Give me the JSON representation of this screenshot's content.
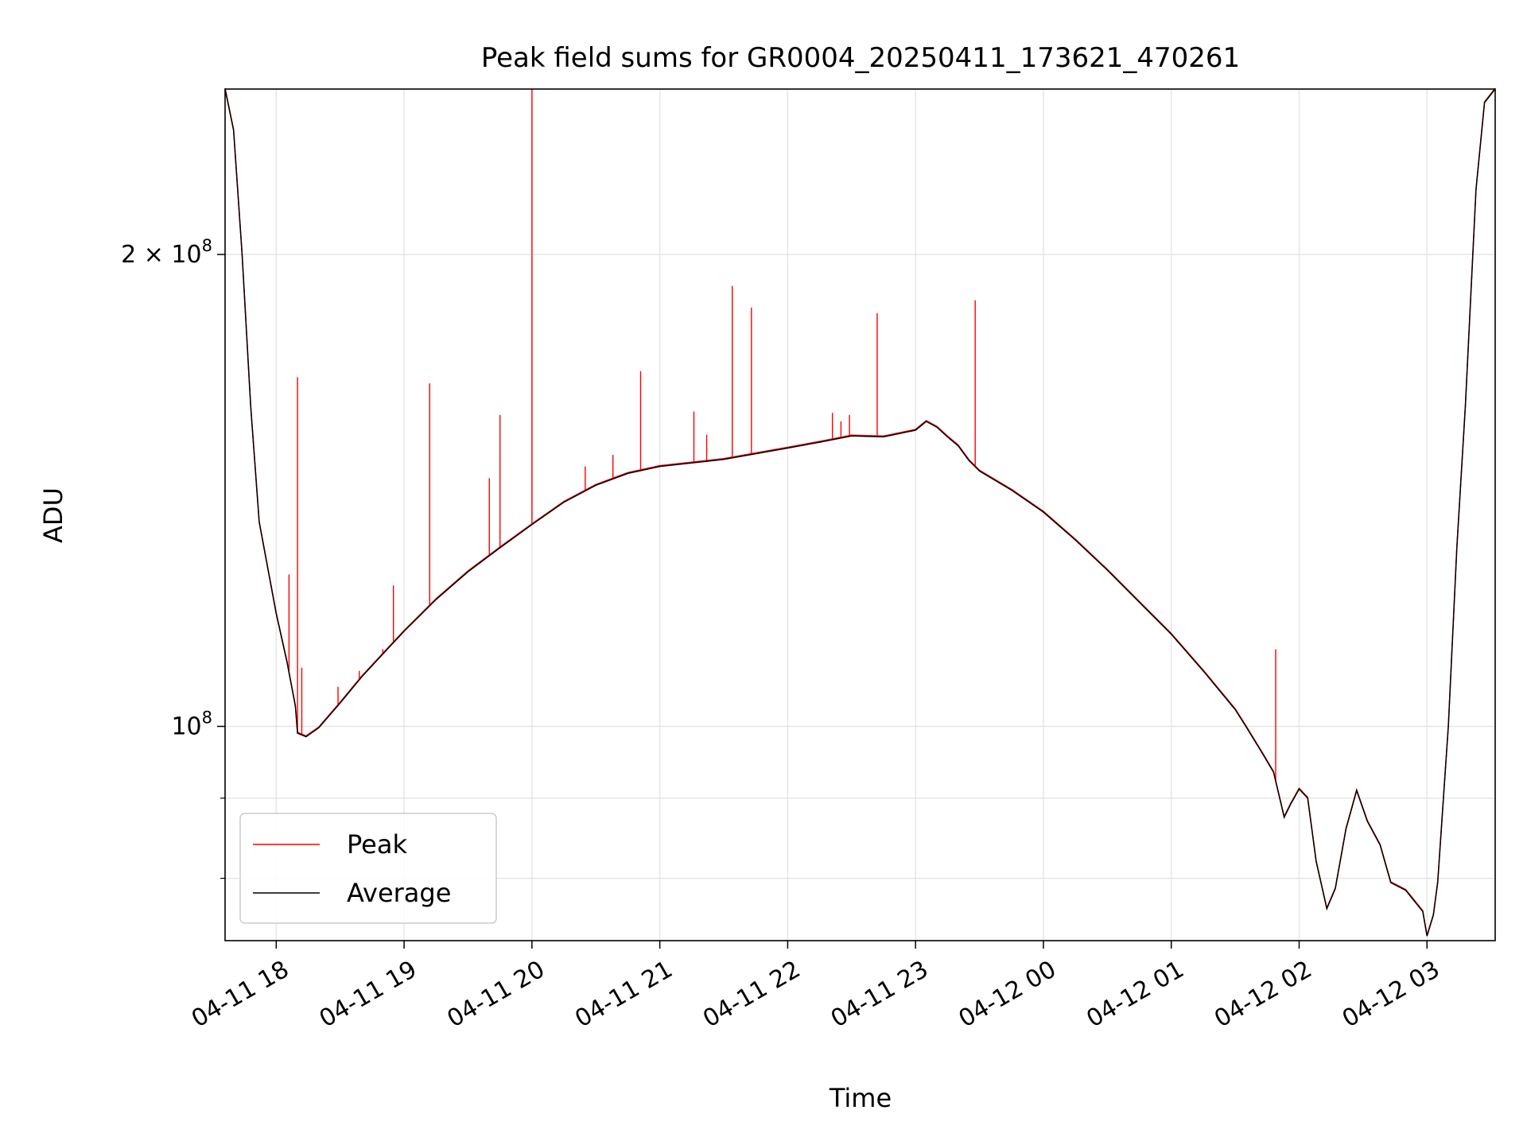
{
  "chart_data": {
    "type": "line",
    "title": "Peak field sums for GR0004_20250411_173621_470261",
    "xlabel": "Time",
    "ylabel": "ADU",
    "x_scale": "time",
    "y_scale": "log",
    "xlim": [
      "2025-04-11 17:36",
      "2025-04-12 03:32"
    ],
    "ylim": [
      73000000,
      255000000
    ],
    "grid": true,
    "legend_position": "lower-left",
    "x_ticks": [
      {
        "value": "2025-04-11 18:00",
        "label": "04-11 18"
      },
      {
        "value": "2025-04-11 19:00",
        "label": "04-11 19"
      },
      {
        "value": "2025-04-11 20:00",
        "label": "04-11 20"
      },
      {
        "value": "2025-04-11 21:00",
        "label": "04-11 21"
      },
      {
        "value": "2025-04-11 22:00",
        "label": "04-11 22"
      },
      {
        "value": "2025-04-11 23:00",
        "label": "04-11 23"
      },
      {
        "value": "2025-04-12 00:00",
        "label": "04-12 00"
      },
      {
        "value": "2025-04-12 01:00",
        "label": "04-12 01"
      },
      {
        "value": "2025-04-12 02:00",
        "label": "04-12 02"
      },
      {
        "value": "2025-04-12 03:00",
        "label": "04-12 03"
      }
    ],
    "y_major_ticks": [
      {
        "value": 100000000,
        "base": "10",
        "exp": "8"
      },
      {
        "value": 200000000,
        "base": "2 × 10",
        "exp": "8"
      }
    ],
    "y_minor_ticks": [
      80000000,
      90000000
    ],
    "series": [
      {
        "name": "Average",
        "color": "#000000",
        "points": [
          [
            "2025-04-11 17:36",
            255000000
          ],
          [
            "2025-04-11 17:40",
            240000000
          ],
          [
            "2025-04-11 17:44",
            200000000
          ],
          [
            "2025-04-11 17:48",
            160000000
          ],
          [
            "2025-04-11 17:52",
            135000000
          ],
          [
            "2025-04-11 18:00",
            118000000
          ],
          [
            "2025-04-11 18:05",
            110000000
          ],
          [
            "2025-04-11 18:09",
            103000000
          ],
          [
            "2025-04-11 18:10",
            99000000
          ],
          [
            "2025-04-11 18:14",
            98500000
          ],
          [
            "2025-04-11 18:20",
            99800000
          ],
          [
            "2025-04-11 18:30",
            103500000
          ],
          [
            "2025-04-11 18:40",
            107500000
          ],
          [
            "2025-04-11 18:50",
            111200000
          ],
          [
            "2025-04-11 19:00",
            115000000
          ],
          [
            "2025-04-11 19:15",
            120500000
          ],
          [
            "2025-04-11 19:30",
            125500000
          ],
          [
            "2025-04-11 19:45",
            130000000
          ],
          [
            "2025-04-11 20:00",
            134500000
          ],
          [
            "2025-04-11 20:15",
            139000000
          ],
          [
            "2025-04-11 20:30",
            142500000
          ],
          [
            "2025-04-11 20:45",
            145000000
          ],
          [
            "2025-04-11 21:00",
            146500000
          ],
          [
            "2025-04-11 21:30",
            148000000
          ],
          [
            "2025-04-11 22:00",
            150500000
          ],
          [
            "2025-04-11 22:15",
            151800000
          ],
          [
            "2025-04-11 22:30",
            153200000
          ],
          [
            "2025-04-11 22:45",
            153000000
          ],
          [
            "2025-04-11 23:00",
            154500000
          ],
          [
            "2025-04-11 23:05",
            156500000
          ],
          [
            "2025-04-11 23:10",
            155200000
          ],
          [
            "2025-04-11 23:15",
            153000000
          ],
          [
            "2025-04-11 23:20",
            151000000
          ],
          [
            "2025-04-11 23:25",
            147800000
          ],
          [
            "2025-04-11 23:30",
            145500000
          ],
          [
            "2025-04-11 23:45",
            141500000
          ],
          [
            "2025-04-12 00:00",
            137000000
          ],
          [
            "2025-04-12 00:15",
            131500000
          ],
          [
            "2025-04-12 00:30",
            125800000
          ],
          [
            "2025-04-12 00:45",
            120000000
          ],
          [
            "2025-04-12 01:00",
            114500000
          ],
          [
            "2025-04-12 01:15",
            108500000
          ],
          [
            "2025-04-12 01:30",
            102500000
          ],
          [
            "2025-04-12 01:35",
            100000000
          ],
          [
            "2025-04-12 01:43",
            96000000
          ],
          [
            "2025-04-12 01:48",
            93500000
          ],
          [
            "2025-04-12 01:53",
            87500000
          ],
          [
            "2025-04-12 01:56",
            89200000
          ],
          [
            "2025-04-12 02:00",
            91200000
          ],
          [
            "2025-04-12 02:04",
            90000000
          ],
          [
            "2025-04-12 02:08",
            82000000
          ],
          [
            "2025-04-12 02:13",
            76500000
          ],
          [
            "2025-04-12 02:17",
            78800000
          ],
          [
            "2025-04-12 02:22",
            86000000
          ],
          [
            "2025-04-12 02:27",
            91000000
          ],
          [
            "2025-04-12 02:32",
            87000000
          ],
          [
            "2025-04-12 02:38",
            84000000
          ],
          [
            "2025-04-12 02:43",
            79500000
          ],
          [
            "2025-04-12 02:50",
            78600000
          ],
          [
            "2025-04-12 02:58",
            76200000
          ],
          [
            "2025-04-12 03:00",
            73500000
          ],
          [
            "2025-04-12 03:03",
            75800000
          ],
          [
            "2025-04-12 03:05",
            79500000
          ],
          [
            "2025-04-12 03:10",
            100000000
          ],
          [
            "2025-04-12 03:14",
            130000000
          ],
          [
            "2025-04-12 03:18",
            160000000
          ],
          [
            "2025-04-12 03:23",
            220000000
          ],
          [
            "2025-04-12 03:27",
            250000000
          ],
          [
            "2025-04-12 03:32",
            255000000
          ]
        ]
      },
      {
        "name": "Peak",
        "color": "#ff0000",
        "spikes": [
          [
            "2025-04-11 18:06",
            125000000
          ],
          [
            "2025-04-11 18:10",
            167000000
          ],
          [
            "2025-04-11 18:12",
            109000000
          ],
          [
            "2025-04-11 18:29",
            106000000
          ],
          [
            "2025-04-11 18:39",
            108500000
          ],
          [
            "2025-04-11 18:50",
            112000000
          ],
          [
            "2025-04-11 18:55",
            123000000
          ],
          [
            "2025-04-11 19:12",
            165500000
          ],
          [
            "2025-04-11 19:40",
            144000000
          ],
          [
            "2025-04-11 19:45",
            158000000
          ],
          [
            "2025-04-11 20:00",
            255000000
          ],
          [
            "2025-04-11 20:25",
            146500000
          ],
          [
            "2025-04-11 20:38",
            149000000
          ],
          [
            "2025-04-11 20:51",
            168500000
          ],
          [
            "2025-04-11 21:16",
            158800000
          ],
          [
            "2025-04-11 21:22",
            153500000
          ],
          [
            "2025-04-11 21:34",
            191000000
          ],
          [
            "2025-04-11 21:43",
            185000000
          ],
          [
            "2025-04-11 22:21",
            158500000
          ],
          [
            "2025-04-11 22:25",
            156500000
          ],
          [
            "2025-04-11 22:29",
            158000000
          ],
          [
            "2025-04-11 22:42",
            183500000
          ],
          [
            "2025-04-11 23:28",
            187000000
          ],
          [
            "2025-04-12 01:49",
            112000000
          ]
        ]
      }
    ]
  }
}
